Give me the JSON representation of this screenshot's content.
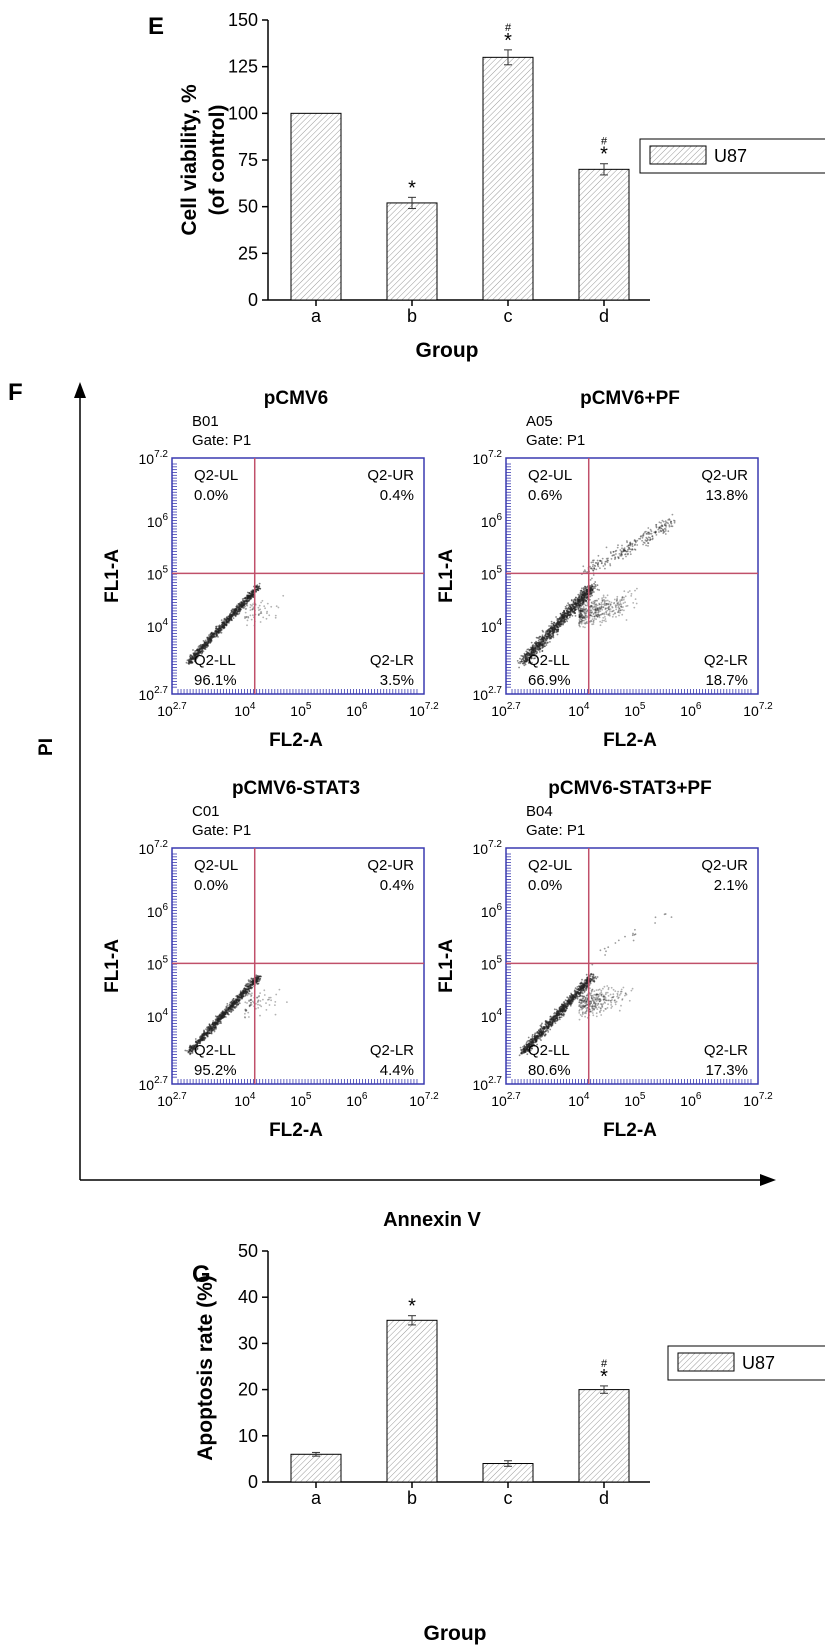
{
  "panel_e": {
    "letter": "E",
    "ylabel_line1": "Cell viability, %",
    "ylabel_line2": "(of control)",
    "xlabel": "Group",
    "legend": "U87"
  },
  "panel_f": {
    "letter": "F",
    "y_axis_label": "PI",
    "x_axis_label": "Annexin V",
    "x_tick_labels": [
      "10",
      "10",
      "10",
      "10",
      "10"
    ],
    "x_tick_exps": [
      "2.7",
      "4",
      "5",
      "6",
      "7.2"
    ],
    "y_tick_labels": [
      "10",
      "10",
      "10",
      "10",
      "10"
    ],
    "y_tick_exps": [
      "7.2",
      "6",
      "5",
      "4",
      "2.7"
    ],
    "plots": [
      {
        "title": "pCMV6",
        "sample": "B01",
        "gate": "Gate: P1",
        "ylabel": "FL1-A",
        "xlabel": "FL2-A",
        "ul_name": "Q2-UL",
        "ul": "0.0%",
        "ur_name": "Q2-UR",
        "ur": "0.4%",
        "ll_name": "Q2-LL",
        "ll": "96.1%",
        "lr_name": "Q2-LR",
        "lr": "3.5%"
      },
      {
        "title": "pCMV6+PF",
        "sample": "A05",
        "gate": "Gate: P1",
        "ylabel": "FL1-A",
        "xlabel": "FL2-A",
        "ul_name": "Q2-UL",
        "ul": "0.6%",
        "ur_name": "Q2-UR",
        "ur": "13.8%",
        "ll_name": "Q2-LL",
        "ll": "66.9%",
        "lr_name": "Q2-LR",
        "lr": "18.7%"
      },
      {
        "title": "pCMV6-STAT3",
        "sample": "C01",
        "gate": "Gate: P1",
        "ylabel": "FL1-A",
        "xlabel": "FL2-A",
        "ul_name": "Q2-UL",
        "ul": "0.0%",
        "ur_name": "Q2-UR",
        "ur": "0.4%",
        "ll_name": "Q2-LL",
        "ll": "95.2%",
        "lr_name": "Q2-LR",
        "lr": "4.4%"
      },
      {
        "title": "pCMV6-STAT3+PF",
        "sample": "B04",
        "gate": "Gate: P1",
        "ylabel": "FL1-A",
        "xlabel": "FL2-A",
        "ul_name": "Q2-UL",
        "ul": "0.0%",
        "ur_name": "Q2-UR",
        "ur": "2.1%",
        "ll_name": "Q2-LL",
        "ll": "80.6%",
        "lr_name": "Q2-LR",
        "lr": "17.3%"
      }
    ]
  },
  "panel_g": {
    "letter": "G",
    "ylabel": "Apoptosis rate (%)",
    "xlabel": "Group",
    "legend": "U87"
  },
  "colors": {
    "axis": "#000000",
    "frame": "#3a3ab0",
    "gate": "#c0506a",
    "dots": "#222222"
  },
  "chart_data": [
    {
      "type": "bar",
      "categories": [
        "a",
        "b",
        "c",
        "d"
      ],
      "values": [
        100,
        52,
        130,
        70
      ],
      "errors": [
        0,
        3,
        4,
        3
      ],
      "annotations": [
        "",
        "*",
        "#*",
        "#*"
      ],
      "series_name": "U87",
      "ylim": [
        0,
        150
      ],
      "yticks": [
        0,
        25,
        50,
        75,
        100,
        125,
        150
      ],
      "xlabel": "Group",
      "ylabel": "Cell viability, % (of control)"
    },
    {
      "type": "scatter",
      "x_scale": "log",
      "y_scale": "log",
      "xlim": [
        500,
        15800000
      ],
      "ylim": [
        500,
        15800000
      ],
      "gate_x": 15000,
      "gate_y": 100000
    },
    {
      "type": "bar",
      "categories": [
        "a",
        "b",
        "c",
        "d"
      ],
      "values": [
        6,
        35,
        4,
        20
      ],
      "errors": [
        0.4,
        1,
        0.6,
        0.8
      ],
      "annotations": [
        "",
        "*",
        "",
        "#*"
      ],
      "series_name": "U87",
      "ylim": [
        0,
        50
      ],
      "yticks": [
        0,
        10,
        20,
        30,
        40,
        50
      ],
      "xlabel": "Group",
      "ylabel": "Apoptosis rate (%)"
    }
  ]
}
